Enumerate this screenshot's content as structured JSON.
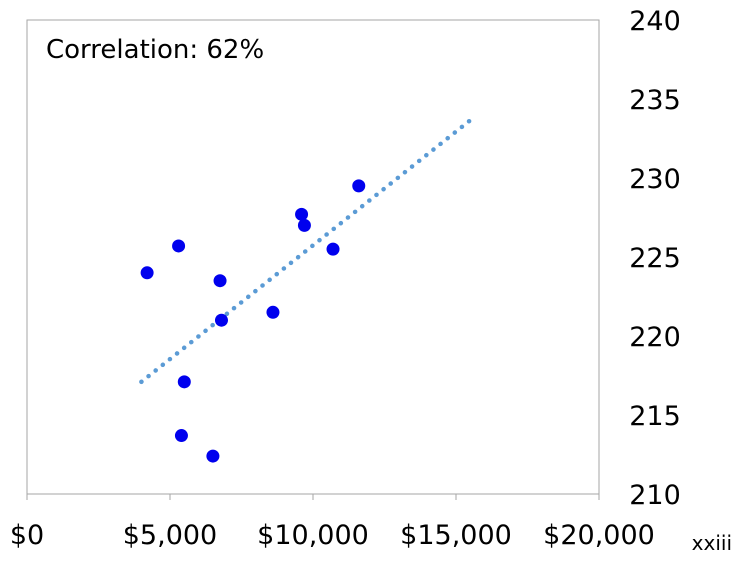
{
  "page": {
    "page_number": "xxiii"
  },
  "chart_data": {
    "type": "scatter",
    "title": "",
    "annotation": "Correlation: 62%",
    "xlabel": "",
    "ylabel": "",
    "xlim": [
      0,
      20000
    ],
    "ylim": [
      210,
      240
    ],
    "x_ticks": [
      0,
      5000,
      10000,
      15000,
      20000
    ],
    "x_tick_labels": [
      "$0",
      "$5,000",
      "$10,000",
      "$15,000",
      "$20,000"
    ],
    "y_ticks": [
      210,
      215,
      220,
      225,
      230,
      235,
      240
    ],
    "y_tick_labels": [
      "210",
      "215",
      "220",
      "225",
      "230",
      "235",
      "240"
    ],
    "y_axis_position": "right",
    "grid": false,
    "legend": "none",
    "series": [
      {
        "color": "#0000ee",
        "points": [
          {
            "x": 4200,
            "y": 224.0
          },
          {
            "x": 5300,
            "y": 225.7
          },
          {
            "x": 5400,
            "y": 213.7
          },
          {
            "x": 5500,
            "y": 217.1
          },
          {
            "x": 6500,
            "y": 212.4
          },
          {
            "x": 6750,
            "y": 223.5
          },
          {
            "x": 6800,
            "y": 221.0
          },
          {
            "x": 8600,
            "y": 221.5
          },
          {
            "x": 9600,
            "y": 227.7
          },
          {
            "x": 9700,
            "y": 227.0
          },
          {
            "x": 10700,
            "y": 225.5
          },
          {
            "x": 11600,
            "y": 229.5
          }
        ]
      }
    ],
    "trendline": {
      "style": "dotted",
      "color": "#5b9bd5",
      "x_start": 4000,
      "y_start": 217.1,
      "x_end": 15600,
      "y_end": 233.8
    }
  }
}
